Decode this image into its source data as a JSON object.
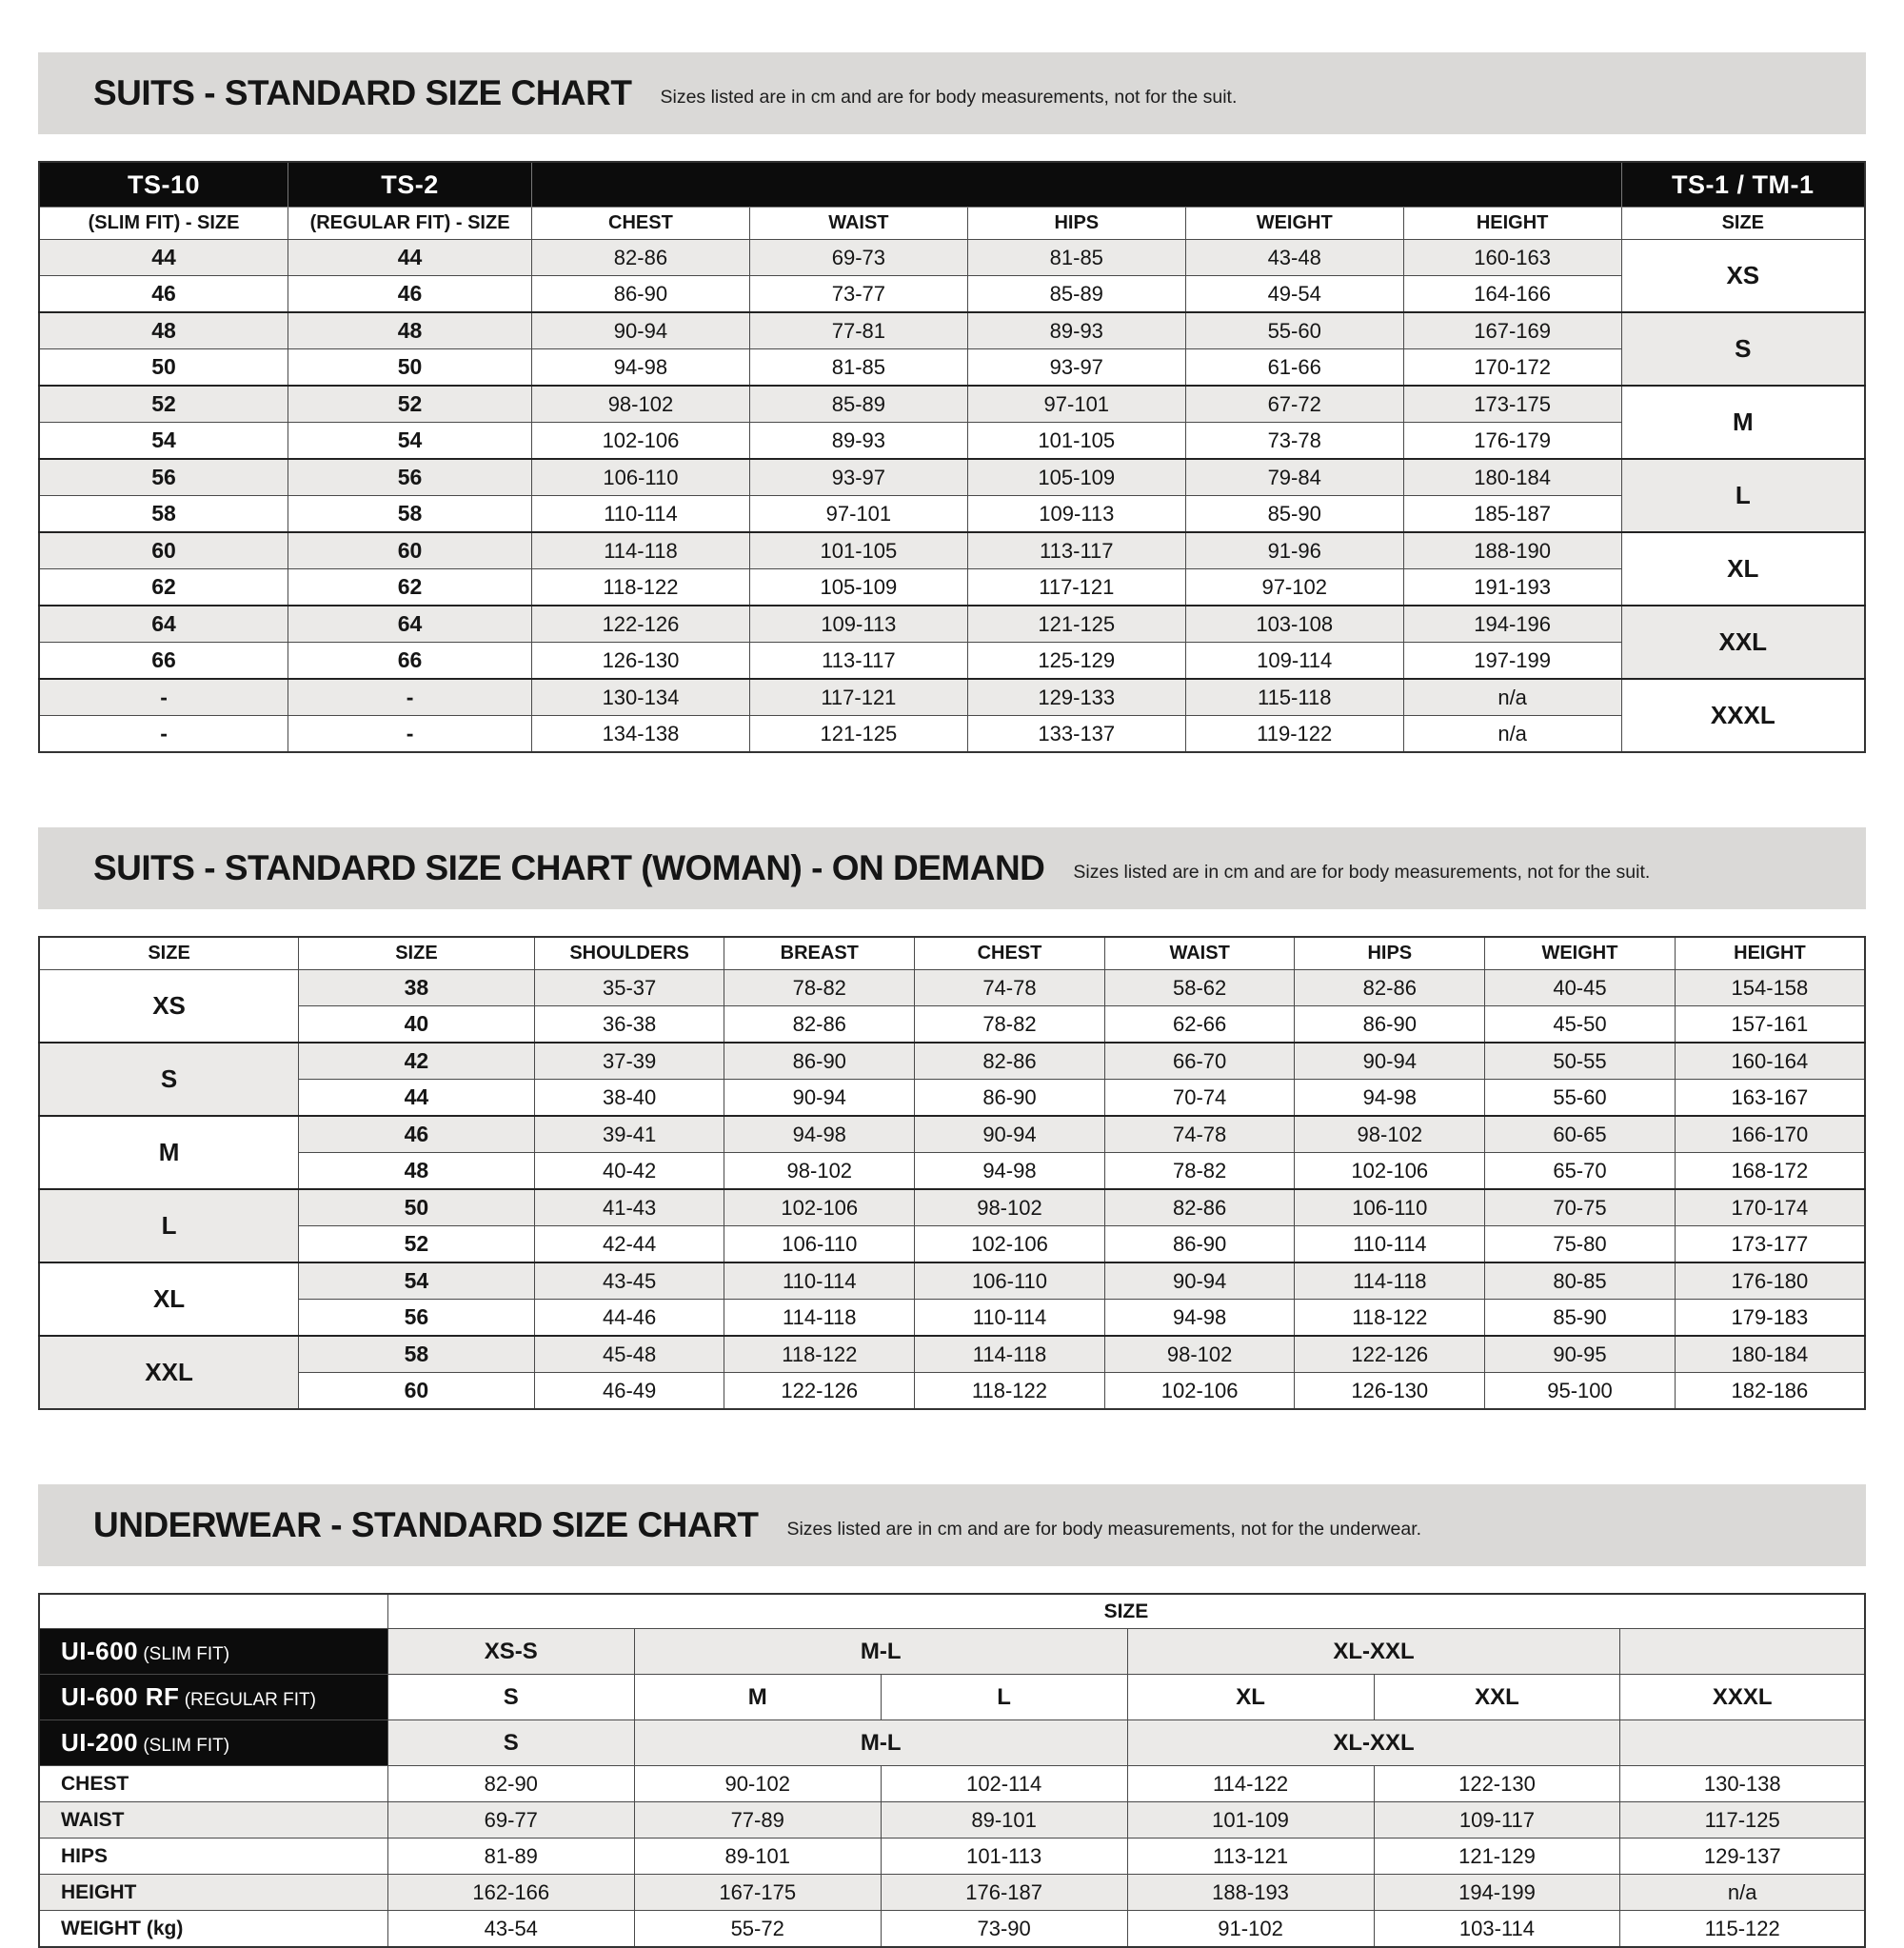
{
  "colors": {
    "title_bar_bg": "#dad9d7",
    "header_bg": "#0c0c0c",
    "header_text": "#ffffff",
    "row_stripe": "#ebeae8",
    "border": "#4a4a4a",
    "text": "#151515"
  },
  "suits_men": {
    "title": "SUITS - STANDARD SIZE CHART",
    "subtitle": "Sizes listed are in cm and are for body measurements, not for the suit.",
    "products_left": [
      "TS-10",
      "TS-2"
    ],
    "product_right": "TS-1 / TM-1",
    "columns": [
      "(SLIM FIT) - SIZE",
      "(REGULAR FIT) - SIZE",
      "CHEST",
      "WAIST",
      "HIPS",
      "WEIGHT",
      "HEIGHT",
      "SIZE"
    ],
    "size_groups": [
      "XS",
      "S",
      "M",
      "L",
      "XL",
      "XXL",
      "XXXL"
    ],
    "rows": [
      [
        "44",
        "44",
        "82-86",
        "69-73",
        "81-85",
        "43-48",
        "160-163"
      ],
      [
        "46",
        "46",
        "86-90",
        "73-77",
        "85-89",
        "49-54",
        "164-166"
      ],
      [
        "48",
        "48",
        "90-94",
        "77-81",
        "89-93",
        "55-60",
        "167-169"
      ],
      [
        "50",
        "50",
        "94-98",
        "81-85",
        "93-97",
        "61-66",
        "170-172"
      ],
      [
        "52",
        "52",
        "98-102",
        "85-89",
        "97-101",
        "67-72",
        "173-175"
      ],
      [
        "54",
        "54",
        "102-106",
        "89-93",
        "101-105",
        "73-78",
        "176-179"
      ],
      [
        "56",
        "56",
        "106-110",
        "93-97",
        "105-109",
        "79-84",
        "180-184"
      ],
      [
        "58",
        "58",
        "110-114",
        "97-101",
        "109-113",
        "85-90",
        "185-187"
      ],
      [
        "60",
        "60",
        "114-118",
        "101-105",
        "113-117",
        "91-96",
        "188-190"
      ],
      [
        "62",
        "62",
        "118-122",
        "105-109",
        "117-121",
        "97-102",
        "191-193"
      ],
      [
        "64",
        "64",
        "122-126",
        "109-113",
        "121-125",
        "103-108",
        "194-196"
      ],
      [
        "66",
        "66",
        "126-130",
        "113-117",
        "125-129",
        "109-114",
        "197-199"
      ],
      [
        "-",
        "-",
        "130-134",
        "117-121",
        "129-133",
        "115-118",
        "n/a"
      ],
      [
        "-",
        "-",
        "134-138",
        "121-125",
        "133-137",
        "119-122",
        "n/a"
      ]
    ]
  },
  "suits_women": {
    "title": "SUITS - STANDARD SIZE CHART (WOMAN) - ON DEMAND",
    "subtitle": "Sizes listed are in cm and are for body measurements, not for the suit.",
    "columns": [
      "SIZE",
      "SIZE",
      "SHOULDERS",
      "BREAST",
      "CHEST",
      "WAIST",
      "HIPS",
      "WEIGHT",
      "HEIGHT"
    ],
    "size_groups": [
      "XS",
      "S",
      "M",
      "L",
      "XL",
      "XXL"
    ],
    "rows": [
      [
        "38",
        "35-37",
        "78-82",
        "74-78",
        "58-62",
        "82-86",
        "40-45",
        "154-158"
      ],
      [
        "40",
        "36-38",
        "82-86",
        "78-82",
        "62-66",
        "86-90",
        "45-50",
        "157-161"
      ],
      [
        "42",
        "37-39",
        "86-90",
        "82-86",
        "66-70",
        "90-94",
        "50-55",
        "160-164"
      ],
      [
        "44",
        "38-40",
        "90-94",
        "86-90",
        "70-74",
        "94-98",
        "55-60",
        "163-167"
      ],
      [
        "46",
        "39-41",
        "94-98",
        "90-94",
        "74-78",
        "98-102",
        "60-65",
        "166-170"
      ],
      [
        "48",
        "40-42",
        "98-102",
        "94-98",
        "78-82",
        "102-106",
        "65-70",
        "168-172"
      ],
      [
        "50",
        "41-43",
        "102-106",
        "98-102",
        "82-86",
        "106-110",
        "70-75",
        "170-174"
      ],
      [
        "52",
        "42-44",
        "106-110",
        "102-106",
        "86-90",
        "110-114",
        "75-80",
        "173-177"
      ],
      [
        "54",
        "43-45",
        "110-114",
        "106-110",
        "90-94",
        "114-118",
        "80-85",
        "176-180"
      ],
      [
        "56",
        "44-46",
        "114-118",
        "110-114",
        "94-98",
        "118-122",
        "85-90",
        "179-183"
      ],
      [
        "58",
        "45-48",
        "118-122",
        "114-118",
        "98-102",
        "122-126",
        "90-95",
        "180-184"
      ],
      [
        "60",
        "46-49",
        "122-126",
        "118-122",
        "102-106",
        "126-130",
        "95-100",
        "182-186"
      ]
    ]
  },
  "underwear": {
    "title": "UNDERWEAR - STANDARD SIZE CHART",
    "subtitle": "Sizes listed are in cm and are for body measurements, not for the underwear.",
    "size_header": "SIZE",
    "products": [
      {
        "name": "UI-600",
        "fit": "(SLIM FIT)",
        "cells": [
          {
            "t": "XS-S",
            "s": 1
          },
          {
            "t": "M-L",
            "s": 2
          },
          {
            "t": "XL-XXL",
            "s": 2
          },
          {
            "t": "",
            "s": 1
          }
        ]
      },
      {
        "name": "UI-600 RF",
        "fit": "(REGULAR FIT)",
        "cells": [
          {
            "t": "S",
            "s": 1
          },
          {
            "t": "M",
            "s": 1
          },
          {
            "t": "L",
            "s": 1
          },
          {
            "t": "XL",
            "s": 1
          },
          {
            "t": "XXL",
            "s": 1
          },
          {
            "t": "XXXL",
            "s": 1
          }
        ]
      },
      {
        "name": "UI-200",
        "fit": "(SLIM FIT)",
        "cells": [
          {
            "t": "S",
            "s": 1
          },
          {
            "t": "M-L",
            "s": 2
          },
          {
            "t": "XL-XXL",
            "s": 2
          },
          {
            "t": "",
            "s": 1
          }
        ]
      }
    ],
    "measurements": [
      {
        "label": "CHEST",
        "values": [
          "82-90",
          "90-102",
          "102-114",
          "114-122",
          "122-130",
          "130-138"
        ]
      },
      {
        "label": "WAIST",
        "values": [
          "69-77",
          "77-89",
          "89-101",
          "101-109",
          "109-117",
          "117-125"
        ]
      },
      {
        "label": "HIPS",
        "values": [
          "81-89",
          "89-101",
          "101-113",
          "113-121",
          "121-129",
          "129-137"
        ]
      },
      {
        "label": "HEIGHT",
        "values": [
          "162-166",
          "167-175",
          "176-187",
          "188-193",
          "194-199",
          "n/a"
        ]
      },
      {
        "label": "WEIGHT (kg)",
        "values": [
          "43-54",
          "55-72",
          "73-90",
          "91-102",
          "103-114",
          "115-122"
        ]
      }
    ]
  }
}
